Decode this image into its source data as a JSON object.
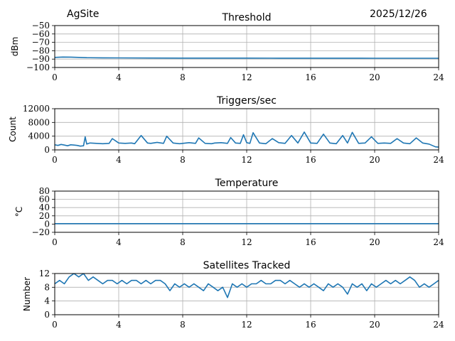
{
  "header": {
    "site": "AgSite",
    "date": "2025/12/26"
  },
  "colors": {
    "series": "#1f77b4",
    "grid": "#b0b0b0",
    "axis": "#000000"
  },
  "chart_data": [
    {
      "type": "line",
      "title": "Threshold",
      "ylabel": "dBm",
      "xlim": [
        0,
        24
      ],
      "ylim": [
        -100,
        -50
      ],
      "xticks": [
        "0",
        "4",
        "8",
        "12",
        "16",
        "20",
        "24"
      ],
      "yticks": [
        "-50",
        "-60",
        "-70",
        "-80",
        "-90",
        "-100"
      ],
      "grid": true,
      "series": [
        {
          "x": [
            0,
            0.5,
            1,
            2,
            3,
            4,
            6,
            8,
            10,
            12,
            14,
            16,
            18,
            20,
            22,
            24
          ],
          "y": [
            -88,
            -87.5,
            -87.6,
            -88.3,
            -88.5,
            -88.6,
            -88.7,
            -88.8,
            -88.8,
            -88.8,
            -88.9,
            -88.9,
            -88.9,
            -89,
            -89,
            -89
          ]
        }
      ]
    },
    {
      "type": "line",
      "title": "Triggers/sec",
      "ylabel": "Count",
      "xlim": [
        0,
        24
      ],
      "ylim": [
        0,
        12000
      ],
      "xticks": [
        "0",
        "4",
        "8",
        "12",
        "16",
        "20",
        "24"
      ],
      "yticks": [
        "12000",
        "8000",
        "4000",
        "0"
      ],
      "grid": true,
      "series": [
        {
          "x": [
            0,
            0.2,
            0.4,
            0.6,
            0.8,
            1,
            1.2,
            1.4,
            1.6,
            1.8,
            1.9,
            2,
            2.2,
            2.6,
            3,
            3.4,
            3.6,
            4,
            4.4,
            4.8,
            5,
            5.4,
            5.8,
            6,
            6.4,
            6.8,
            7,
            7.4,
            7.8,
            8,
            8.4,
            8.8,
            9,
            9.4,
            9.8,
            10,
            10.4,
            10.8,
            11,
            11.3,
            11.6,
            11.8,
            12,
            12.2,
            12.4,
            12.8,
            13.2,
            13.6,
            14,
            14.4,
            14.8,
            15.2,
            15.6,
            16,
            16.4,
            16.8,
            17.2,
            17.6,
            18,
            18.3,
            18.6,
            19,
            19.4,
            19.8,
            20.2,
            20.6,
            21,
            21.4,
            21.8,
            22.2,
            22.6,
            23,
            23.4,
            23.8,
            24
          ],
          "y": [
            1500,
            1300,
            1600,
            1400,
            1200,
            1500,
            1400,
            1300,
            1100,
            1200,
            3800,
            1700,
            2000,
            1900,
            1800,
            1900,
            3300,
            2000,
            1900,
            2000,
            1800,
            4200,
            2000,
            1900,
            2200,
            1900,
            4000,
            2000,
            1800,
            1900,
            2100,
            1900,
            3500,
            1900,
            1800,
            2000,
            2100,
            1900,
            3600,
            2000,
            1900,
            4400,
            2100,
            1900,
            5000,
            2000,
            1800,
            3300,
            2100,
            1900,
            4200,
            2000,
            5200,
            2000,
            1900,
            4600,
            2000,
            1800,
            4200,
            2000,
            5100,
            1900,
            2000,
            3800,
            1900,
            2000,
            1900,
            3300,
            2000,
            1800,
            3500,
            2000,
            1700,
            900,
            800
          ]
        }
      ]
    },
    {
      "type": "line",
      "title": "Temperature",
      "ylabel": "°C",
      "xlim": [
        0,
        24
      ],
      "ylim": [
        -20,
        80
      ],
      "xticks": [
        "0",
        "4",
        "8",
        "12",
        "16",
        "20",
        "24"
      ],
      "yticks": [
        "80",
        "60",
        "40",
        "20",
        "0",
        "-20"
      ],
      "grid": true,
      "series": [
        {
          "x": [
            0,
            4,
            8,
            12,
            16,
            20,
            24
          ],
          "y": [
            1,
            1,
            1,
            1,
            1,
            1,
            1
          ]
        }
      ]
    },
    {
      "type": "line",
      "title": "Satellites Tracked",
      "ylabel": "Number",
      "xlim": [
        0,
        24
      ],
      "ylim": [
        0,
        12
      ],
      "xticks": [
        "0",
        "4",
        "8",
        "12",
        "16",
        "20",
        "24"
      ],
      "yticks": [
        "12",
        "8",
        "4",
        "0"
      ],
      "grid": true,
      "series": [
        {
          "x": [
            0,
            0.3,
            0.6,
            0.9,
            1.2,
            1.5,
            1.8,
            2.1,
            2.4,
            2.7,
            3,
            3.3,
            3.6,
            3.9,
            4.2,
            4.5,
            4.8,
            5.1,
            5.4,
            5.7,
            6,
            6.3,
            6.6,
            6.9,
            7.2,
            7.5,
            7.8,
            8.1,
            8.4,
            8.7,
            9,
            9.3,
            9.6,
            9.9,
            10.2,
            10.5,
            10.8,
            11.1,
            11.4,
            11.7,
            12,
            12.3,
            12.6,
            12.9,
            13.2,
            13.5,
            13.8,
            14.1,
            14.4,
            14.7,
            15,
            15.3,
            15.6,
            15.9,
            16.2,
            16.5,
            16.8,
            17.1,
            17.4,
            17.7,
            18,
            18.3,
            18.6,
            18.9,
            19.2,
            19.5,
            19.8,
            20.1,
            20.4,
            20.7,
            21,
            21.3,
            21.6,
            21.9,
            22.2,
            22.5,
            22.8,
            23.1,
            23.4,
            23.7,
            24
          ],
          "y": [
            9,
            10,
            9,
            11,
            12,
            11,
            12,
            10,
            11,
            10,
            9,
            10,
            10,
            9,
            10,
            9,
            10,
            10,
            9,
            10,
            9,
            10,
            10,
            9,
            7,
            9,
            8,
            9,
            8,
            9,
            8,
            7,
            9,
            8,
            7,
            8,
            5,
            9,
            8,
            9,
            8,
            9,
            9,
            10,
            9,
            9,
            10,
            10,
            9,
            10,
            9,
            8,
            9,
            8,
            9,
            8,
            7,
            9,
            8,
            9,
            8,
            6,
            9,
            8,
            9,
            7,
            9,
            8,
            9,
            10,
            9,
            10,
            9,
            10,
            11,
            10,
            8,
            9,
            8,
            9,
            10
          ]
        }
      ]
    }
  ]
}
